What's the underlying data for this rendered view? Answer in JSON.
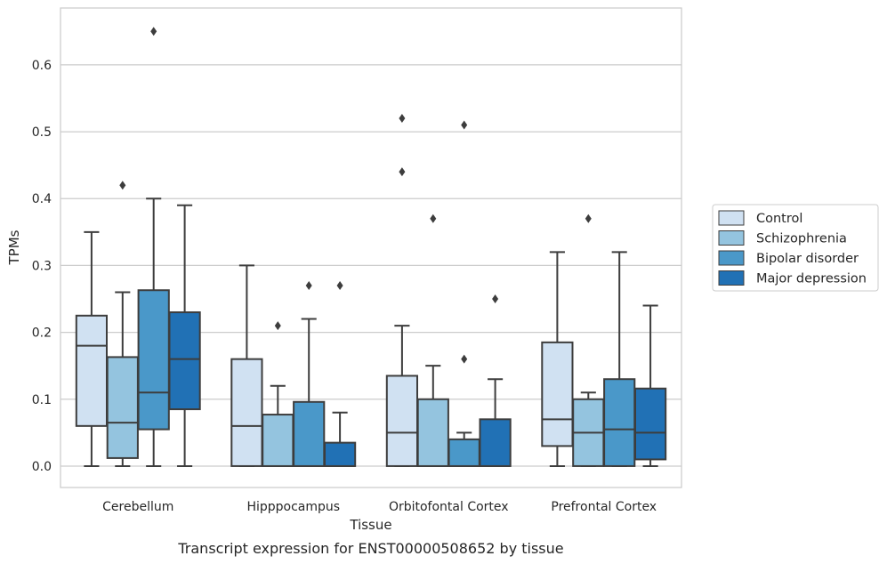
{
  "chart_data": {
    "type": "box",
    "title": "",
    "caption": "Transcript expression for ENST00000508652 by tissue",
    "xlabel": "Tissue",
    "ylabel": "TPMs",
    "ylim": [
      -0.032,
      0.685
    ],
    "yticks": [
      "0.0",
      "0.1",
      "0.2",
      "0.3",
      "0.4",
      "0.5",
      "0.6"
    ],
    "ytick_values": [
      0.0,
      0.1,
      0.2,
      0.3,
      0.4,
      0.5,
      0.6
    ],
    "grid": "horizontal",
    "legend_position": "right",
    "categories": [
      "Cerebellum",
      "Hipppocampus",
      "Orbitofontal Cortex",
      "Prefrontal Cortex"
    ],
    "series": [
      {
        "name": "Control",
        "color": "#d0e1f2",
        "boxes": [
          {
            "whislo": 0.0,
            "q1": 0.06,
            "med": 0.18,
            "q3": 0.225,
            "whishi": 0.35,
            "fliers": []
          },
          {
            "whislo": 0.0,
            "q1": 0.0,
            "med": 0.06,
            "q3": 0.16,
            "whishi": 0.3,
            "fliers": []
          },
          {
            "whislo": 0.0,
            "q1": 0.0,
            "med": 0.05,
            "q3": 0.135,
            "whishi": 0.21,
            "fliers": [
              0.44,
              0.52
            ]
          },
          {
            "whislo": 0.0,
            "q1": 0.03,
            "med": 0.07,
            "q3": 0.185,
            "whishi": 0.32,
            "fliers": []
          }
        ]
      },
      {
        "name": "Schizophrenia",
        "color": "#94c4df",
        "boxes": [
          {
            "whislo": 0.0,
            "q1": 0.012,
            "med": 0.065,
            "q3": 0.163,
            "whishi": 0.26,
            "fliers": [
              0.42
            ]
          },
          {
            "whislo": 0.0,
            "q1": 0.0,
            "med": 0.0,
            "q3": 0.077,
            "whishi": 0.12,
            "fliers": [
              0.21
            ]
          },
          {
            "whislo": 0.0,
            "q1": 0.0,
            "med": 0.0,
            "q3": 0.1,
            "whishi": 0.15,
            "fliers": [
              0.37
            ]
          },
          {
            "whislo": 0.0,
            "q1": 0.0,
            "med": 0.05,
            "q3": 0.1,
            "whishi": 0.11,
            "fliers": [
              0.37
            ]
          }
        ]
      },
      {
        "name": "Bipolar disorder",
        "color": "#4a98c9",
        "boxes": [
          {
            "whislo": 0.0,
            "q1": 0.055,
            "med": 0.11,
            "q3": 0.263,
            "whishi": 0.4,
            "fliers": [
              0.65
            ]
          },
          {
            "whislo": 0.0,
            "q1": 0.0,
            "med": 0.0,
            "q3": 0.096,
            "whishi": 0.22,
            "fliers": [
              0.27
            ]
          },
          {
            "whislo": 0.0,
            "q1": 0.0,
            "med": 0.0,
            "q3": 0.04,
            "whishi": 0.05,
            "fliers": [
              0.16,
              0.51
            ]
          },
          {
            "whislo": 0.0,
            "q1": 0.0,
            "med": 0.055,
            "q3": 0.13,
            "whishi": 0.32,
            "fliers": []
          }
        ]
      },
      {
        "name": "Major depression",
        "color": "#2171b5",
        "boxes": [
          {
            "whislo": 0.0,
            "q1": 0.085,
            "med": 0.16,
            "q3": 0.23,
            "whishi": 0.39,
            "fliers": []
          },
          {
            "whislo": 0.0,
            "q1": 0.0,
            "med": 0.0,
            "q3": 0.035,
            "whishi": 0.08,
            "fliers": [
              0.27
            ]
          },
          {
            "whislo": 0.0,
            "q1": 0.0,
            "med": 0.0,
            "q3": 0.07,
            "whishi": 0.13,
            "fliers": [
              0.25
            ]
          },
          {
            "whislo": 0.0,
            "q1": 0.01,
            "med": 0.05,
            "q3": 0.116,
            "whishi": 0.24,
            "fliers": []
          }
        ]
      }
    ]
  }
}
